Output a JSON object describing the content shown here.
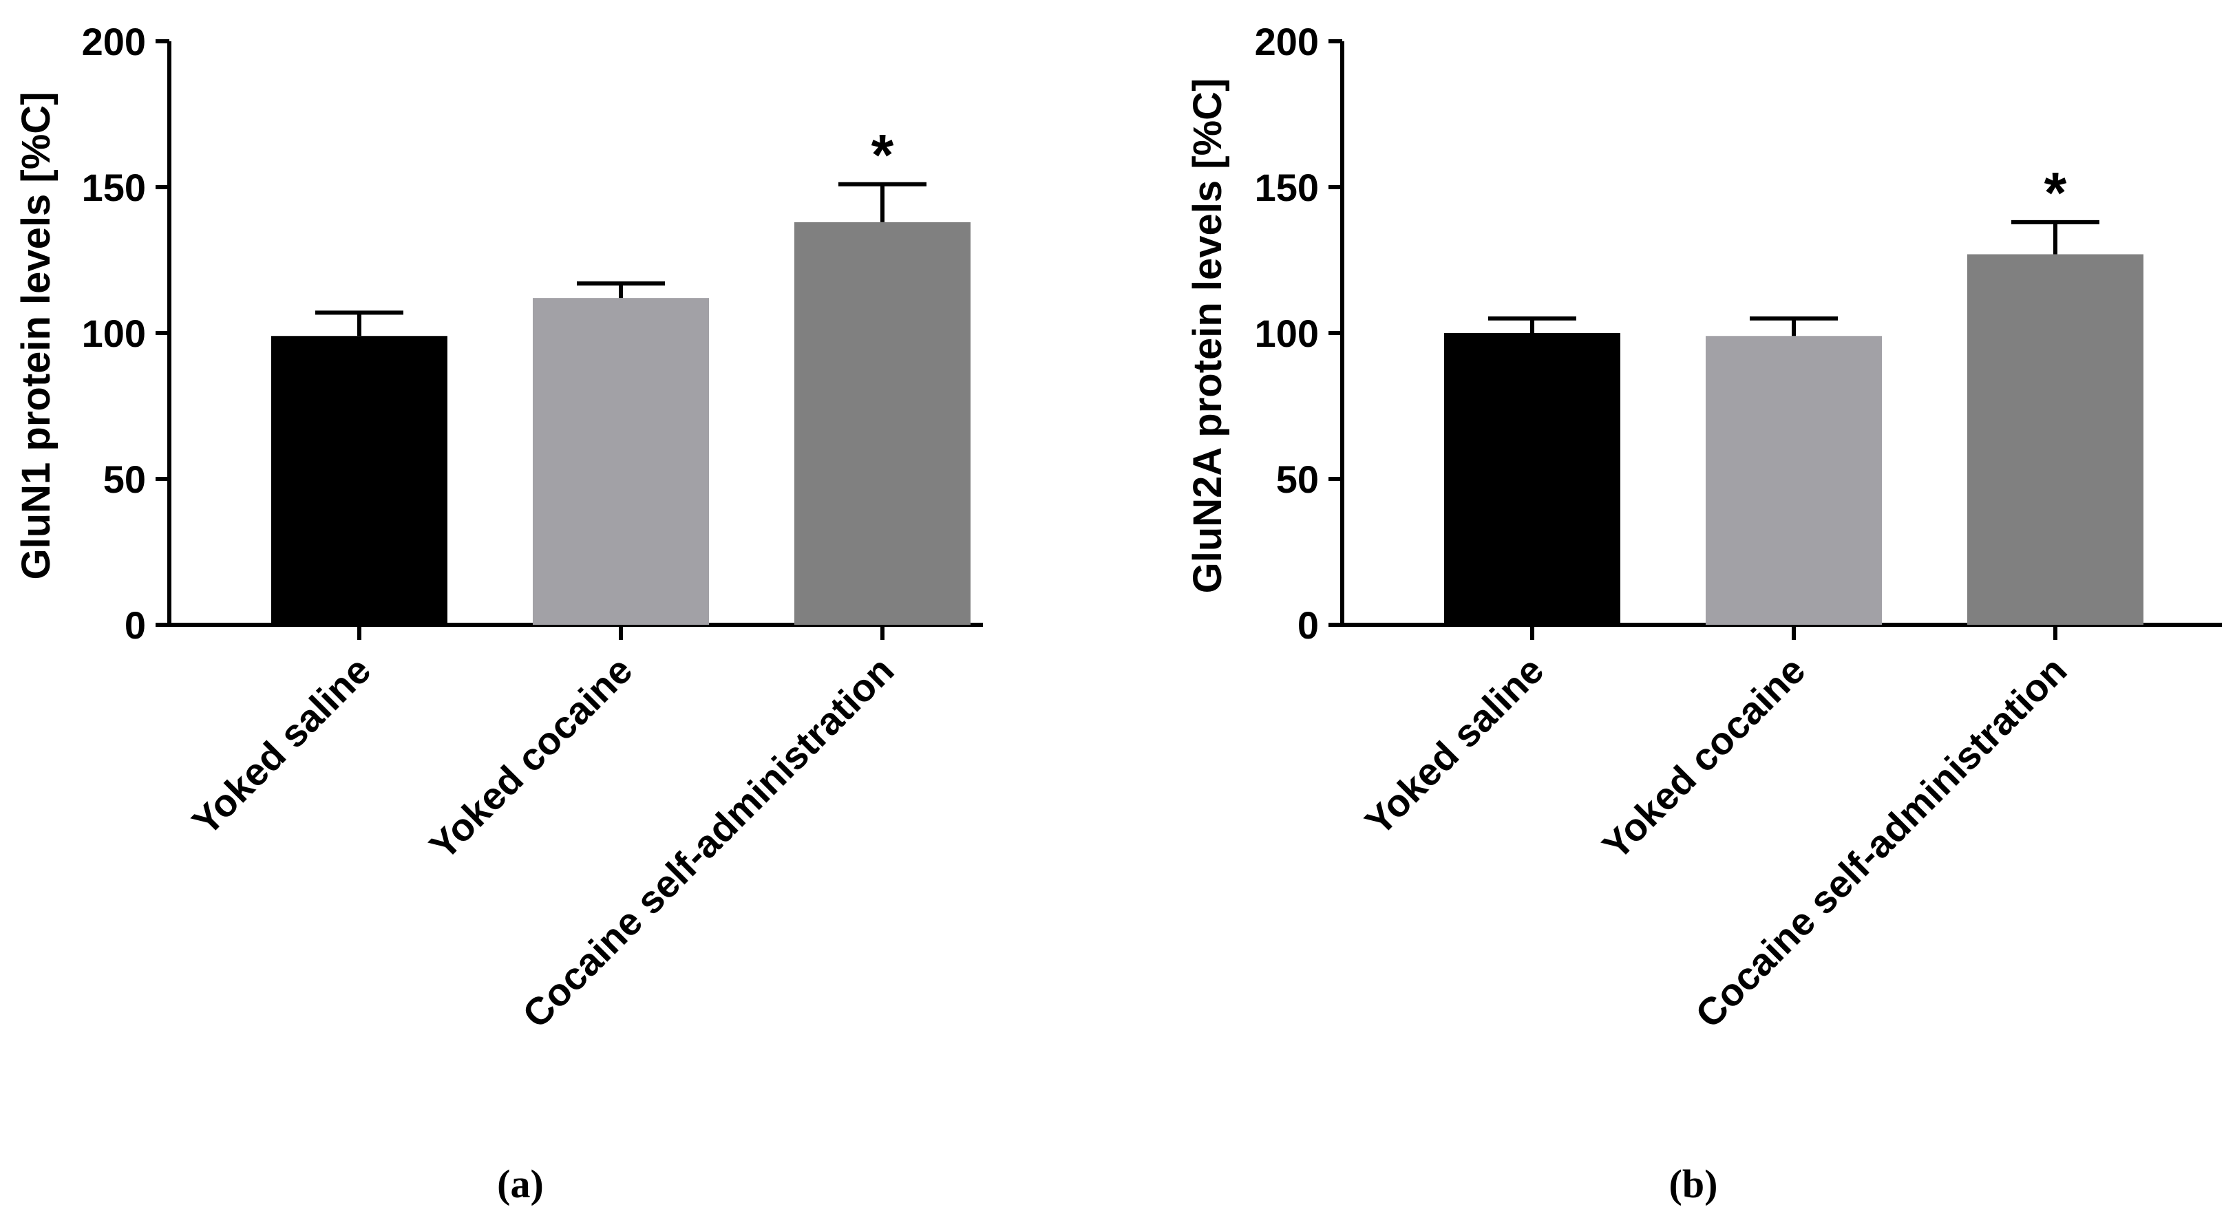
{
  "chart_data": [
    {
      "type": "bar",
      "panel_label": "(a)",
      "ylabel": "GluN1 protein levels [%C]",
      "xlabel": "",
      "ylim": [
        0,
        200
      ],
      "yticks": [
        "0",
        "50",
        "100",
        "150",
        "200"
      ],
      "categories": [
        "Yoked saline",
        "Yoked cocaine",
        "Cocaine self-administration"
      ],
      "values": [
        99,
        112,
        138
      ],
      "errors": [
        8,
        5,
        13
      ],
      "significance": [
        "",
        "",
        "*"
      ],
      "colors": [
        "#000000",
        "#a2a1a6",
        "#808080"
      ]
    },
    {
      "type": "bar",
      "panel_label": "(b)",
      "ylabel": "GluN2A protein levels [%C]",
      "xlabel": "",
      "ylim": [
        0,
        200
      ],
      "yticks": [
        "0",
        "50",
        "100",
        "150",
        "200"
      ],
      "categories": [
        "Yoked saline",
        "Yoked cocaine",
        "Cocaine self-administration"
      ],
      "values": [
        100,
        99,
        127
      ],
      "errors": [
        5,
        6,
        11
      ],
      "significance": [
        "",
        "",
        "*"
      ],
      "colors": [
        "#000000",
        "#a2a1a6",
        "#808080"
      ]
    }
  ]
}
